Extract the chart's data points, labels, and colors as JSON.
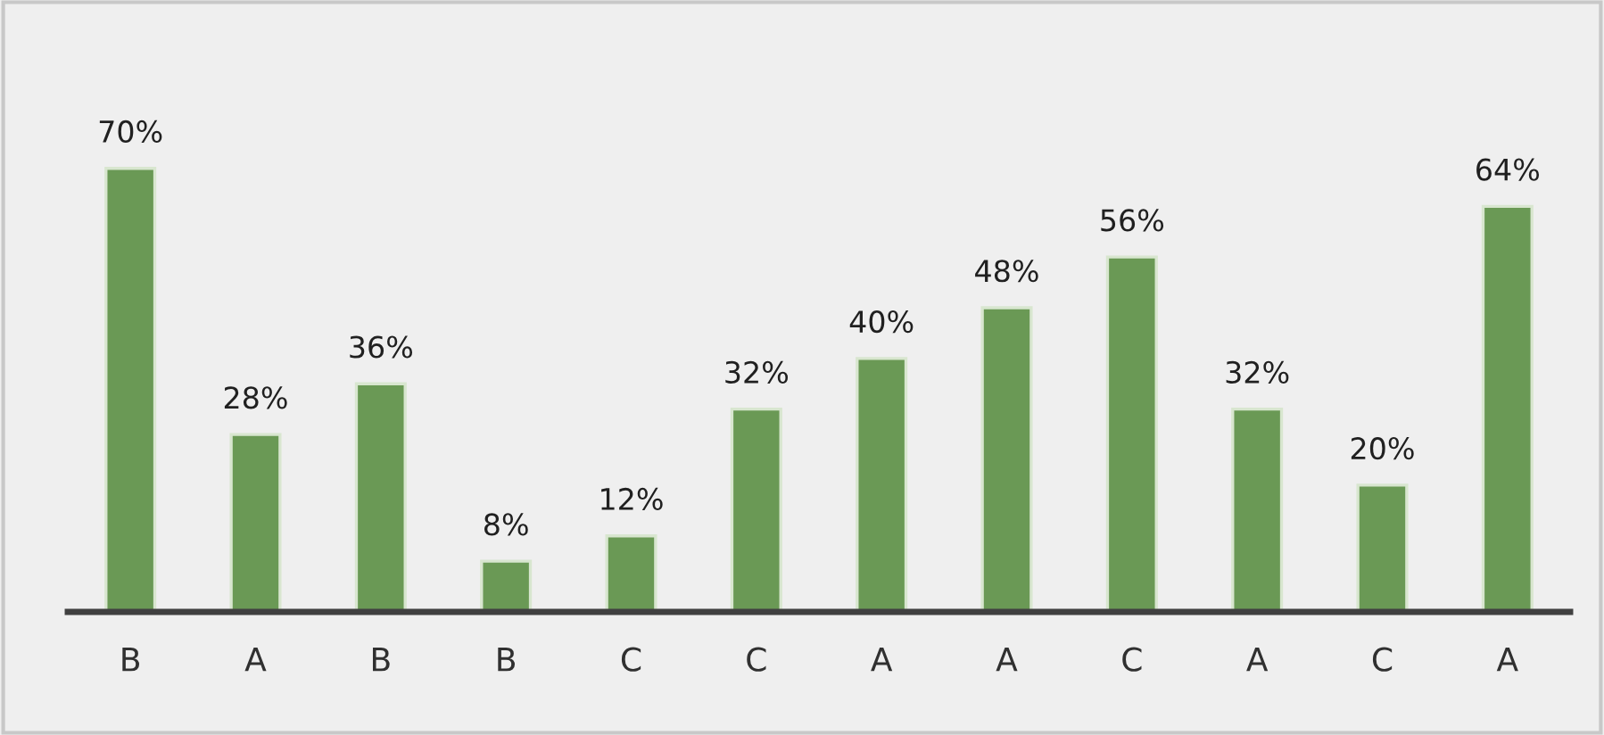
{
  "chart_data": {
    "type": "bar",
    "categories": [
      "B",
      "A",
      "B",
      "B",
      "C",
      "C",
      "A",
      "A",
      "C",
      "A",
      "C",
      "A"
    ],
    "values": [
      70,
      28,
      36,
      8,
      12,
      32,
      40,
      48,
      56,
      32,
      20,
      64
    ],
    "value_labels": [
      "70%",
      "28%",
      "36%",
      "8%",
      "12%",
      "32%",
      "40%",
      "48%",
      "56%",
      "32%",
      "20%",
      "64%"
    ],
    "color": "#6a9955",
    "grid": false,
    "legend": false
  }
}
